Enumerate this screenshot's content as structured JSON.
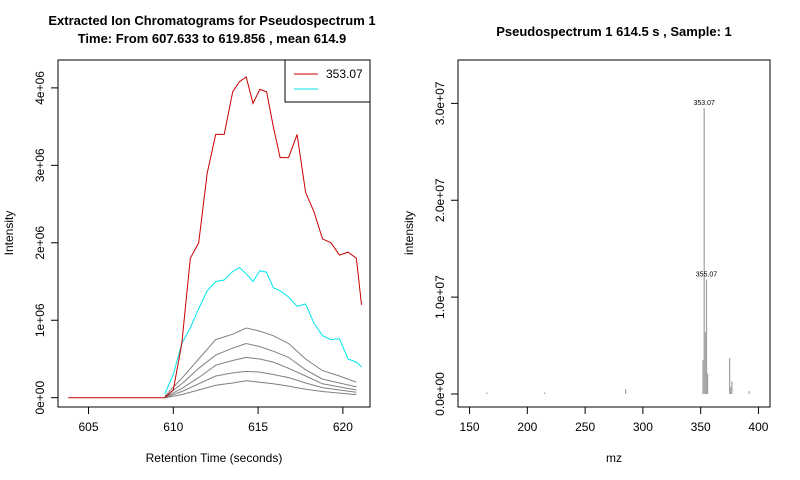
{
  "chart_data": [
    {
      "type": "line",
      "title": "Extracted Ion Chromatograms for  Pseudospectrum 1",
      "subtitle": "Time: From 607.633 to 619.856 , mean 614.9",
      "xlabel": "Retention Time (seconds)",
      "ylabel": "Intensity",
      "xlim": [
        603.2,
        621.6
      ],
      "ylim": [
        -120000,
        4360000
      ],
      "xticks": [
        605,
        610,
        615,
        620
      ],
      "xtick_labels": [
        "605",
        "610",
        "615",
        "620"
      ],
      "yticks": [
        0,
        1000000,
        2000000,
        3000000,
        4000000
      ],
      "ytick_labels": [
        "0e+00",
        "1e+06",
        "2e+06",
        "3e+06",
        "4e+06"
      ],
      "grid": false,
      "legend": {
        "placement": "top-right",
        "entries": [
          "353.07",
          ""
        ]
      },
      "series": [
        {
          "name": "353.07",
          "color": "#cc0000",
          "x": [
            603.8,
            609.5,
            610.0,
            610.5,
            611.0,
            611.5,
            612.0,
            612.5,
            613.0,
            613.5,
            613.9,
            614.3,
            614.7,
            615.1,
            615.5,
            615.9,
            616.3,
            616.8,
            617.3,
            617.8,
            618.3,
            618.8,
            619.3,
            619.8,
            620.3,
            620.8,
            621.1
          ],
          "y": [
            0,
            0,
            100000,
            700000,
            1800000,
            2000000,
            2900000,
            3400000,
            3400000,
            3950000,
            4080000,
            4140000,
            3800000,
            3980000,
            3950000,
            3500000,
            3100000,
            3100000,
            3400000,
            2650000,
            2400000,
            2050000,
            2000000,
            1840000,
            1880000,
            1800000,
            1200000
          ]
        },
        {
          "name": "",
          "color": "#00e5ee",
          "x": [
            609.5,
            610.0,
            610.5,
            611.0,
            611.5,
            612.0,
            612.5,
            613.0,
            613.5,
            613.9,
            614.3,
            614.7,
            615.1,
            615.5,
            615.9,
            616.3,
            616.8,
            617.3,
            617.8,
            618.3,
            618.8,
            619.3,
            619.8,
            620.3,
            620.8,
            621.1
          ],
          "y": [
            50000,
            300000,
            700000,
            900000,
            1150000,
            1380000,
            1500000,
            1520000,
            1630000,
            1680000,
            1600000,
            1500000,
            1640000,
            1620000,
            1420000,
            1380000,
            1300000,
            1180000,
            1210000,
            960000,
            800000,
            750000,
            760000,
            500000,
            460000,
            400000
          ]
        },
        {
          "name": "",
          "color": "#808080",
          "x": [
            609.5,
            610.5,
            611.5,
            612.5,
            613.5,
            614.3,
            615.1,
            615.9,
            616.8,
            617.8,
            618.8,
            619.8,
            620.8
          ],
          "y": [
            20000,
            250000,
            500000,
            750000,
            820000,
            900000,
            860000,
            800000,
            700000,
            500000,
            350000,
            280000,
            200000
          ]
        },
        {
          "name": "",
          "color": "#808080",
          "x": [
            609.5,
            610.5,
            611.5,
            612.5,
            613.5,
            614.3,
            615.1,
            615.9,
            616.8,
            617.8,
            618.8,
            619.8,
            620.8
          ],
          "y": [
            10000,
            180000,
            380000,
            550000,
            640000,
            700000,
            660000,
            600000,
            520000,
            360000,
            240000,
            190000,
            140000
          ]
        },
        {
          "name": "",
          "color": "#808080",
          "x": [
            609.5,
            610.5,
            611.5,
            612.5,
            613.5,
            614.3,
            615.1,
            615.9,
            616.8,
            617.8,
            618.8,
            619.8,
            620.8
          ],
          "y": [
            5000,
            120000,
            260000,
            420000,
            480000,
            520000,
            500000,
            460000,
            380000,
            280000,
            180000,
            140000,
            100000
          ]
        },
        {
          "name": "",
          "color": "#808080",
          "x": [
            609.5,
            610.5,
            611.5,
            612.5,
            613.5,
            614.3,
            615.1,
            615.9,
            616.8,
            617.8,
            618.8,
            619.8,
            620.8
          ],
          "y": [
            0,
            80000,
            180000,
            280000,
            320000,
            340000,
            330000,
            300000,
            260000,
            190000,
            130000,
            100000,
            70000
          ]
        },
        {
          "name": "",
          "color": "#808080",
          "x": [
            609.5,
            610.5,
            611.5,
            612.5,
            613.5,
            614.3,
            615.1,
            615.9,
            616.8,
            617.8,
            618.8,
            619.8,
            620.8
          ],
          "y": [
            0,
            40000,
            100000,
            160000,
            190000,
            220000,
            200000,
            180000,
            150000,
            110000,
            80000,
            60000,
            40000
          ]
        }
      ]
    },
    {
      "type": "bar",
      "title": "Pseudospectrum 1 614.5 s , Sample: 1",
      "xlabel": "mz",
      "ylabel": "intensity",
      "xlim": [
        140,
        410
      ],
      "ylim": [
        0,
        32000000
      ],
      "xticks": [
        150,
        200,
        250,
        300,
        350,
        400
      ],
      "xtick_labels": [
        "150",
        "200",
        "250",
        "300",
        "350",
        "400"
      ],
      "yticks": [
        0,
        10000000,
        20000000,
        30000000
      ],
      "ytick_labels": [
        "0.0e+00",
        "1.0e+07",
        "2.0e+07",
        "3.0e+07"
      ],
      "bar_color": "#a0a0a0",
      "peaks": [
        {
          "mz": 165,
          "intensity": 150000
        },
        {
          "mz": 215,
          "intensity": 150000
        },
        {
          "mz": 285,
          "intensity": 500000
        },
        {
          "mz": 352,
          "intensity": 3500000
        },
        {
          "mz": 353.07,
          "intensity": 29500000,
          "label": "353.07"
        },
        {
          "mz": 354,
          "intensity": 6400000
        },
        {
          "mz": 355.07,
          "intensity": 11800000,
          "label": "355.07"
        },
        {
          "mz": 356,
          "intensity": 2100000
        },
        {
          "mz": 375,
          "intensity": 3700000
        },
        {
          "mz": 376,
          "intensity": 700000
        },
        {
          "mz": 377,
          "intensity": 1300000
        },
        {
          "mz": 392,
          "intensity": 300000
        }
      ]
    }
  ]
}
